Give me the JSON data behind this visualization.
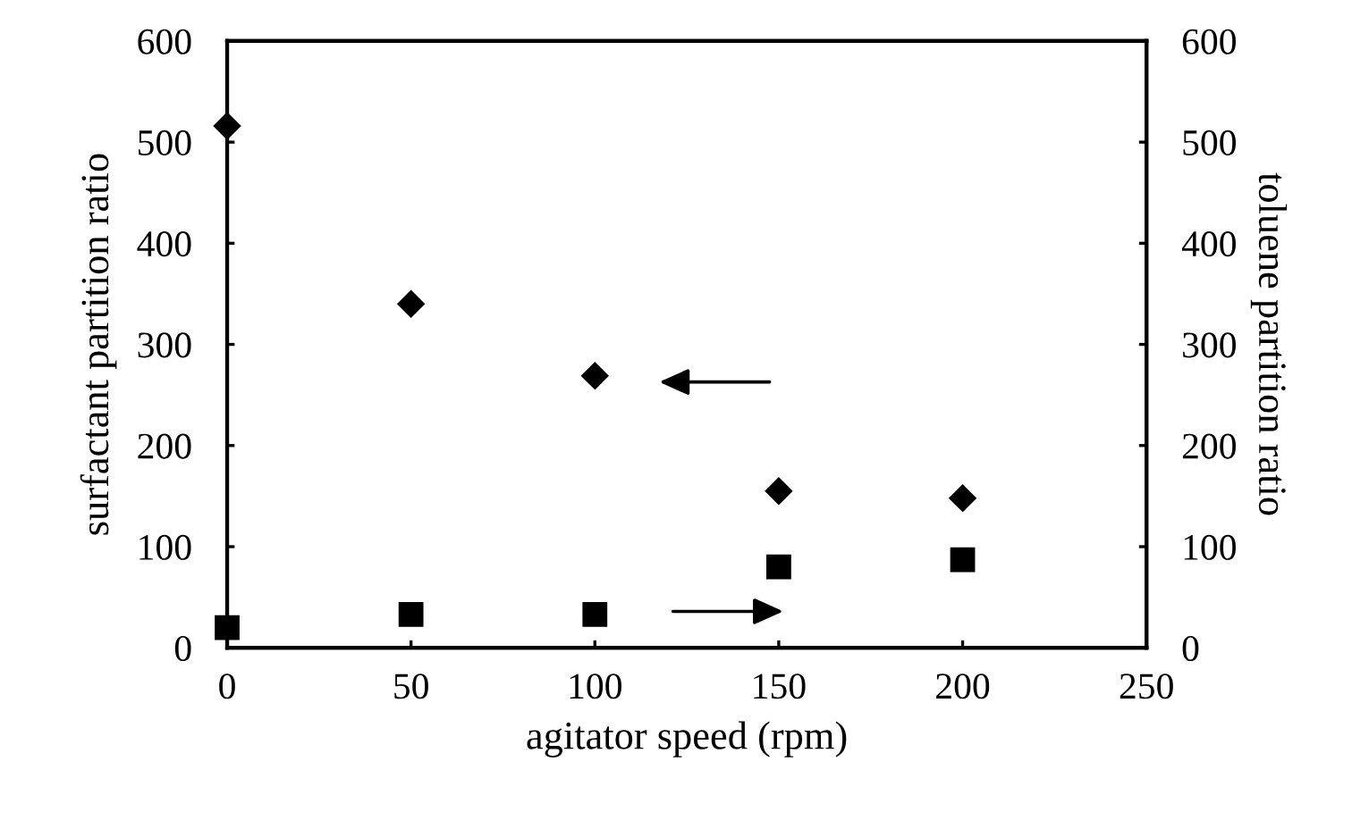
{
  "chart_data": {
    "type": "scatter",
    "xlabel": "agitator speed (rpm)",
    "ylabel": "surfactant partition ratio",
    "y2label": "toluene partition ratio",
    "x": [
      0,
      50,
      100,
      150,
      200
    ],
    "series": [
      {
        "color": "#000000",
        "marker": "diamond",
        "values": [
          516,
          340,
          269,
          155,
          148
        ]
      },
      {
        "color": "#000000",
        "marker": "square",
        "axis": "y2",
        "values": [
          20,
          33,
          33,
          80,
          87
        ]
      }
    ],
    "xlim": [
      0,
      250
    ],
    "xticks": [
      0,
      50,
      100,
      150,
      200,
      250
    ],
    "ylim": [
      0,
      600
    ],
    "yticks": [
      0,
      100,
      200,
      300,
      400,
      500,
      600
    ],
    "y2lim": [
      0,
      600
    ],
    "y2ticks": [
      0,
      100,
      200,
      300,
      400,
      500,
      600
    ],
    "grid": false
  }
}
